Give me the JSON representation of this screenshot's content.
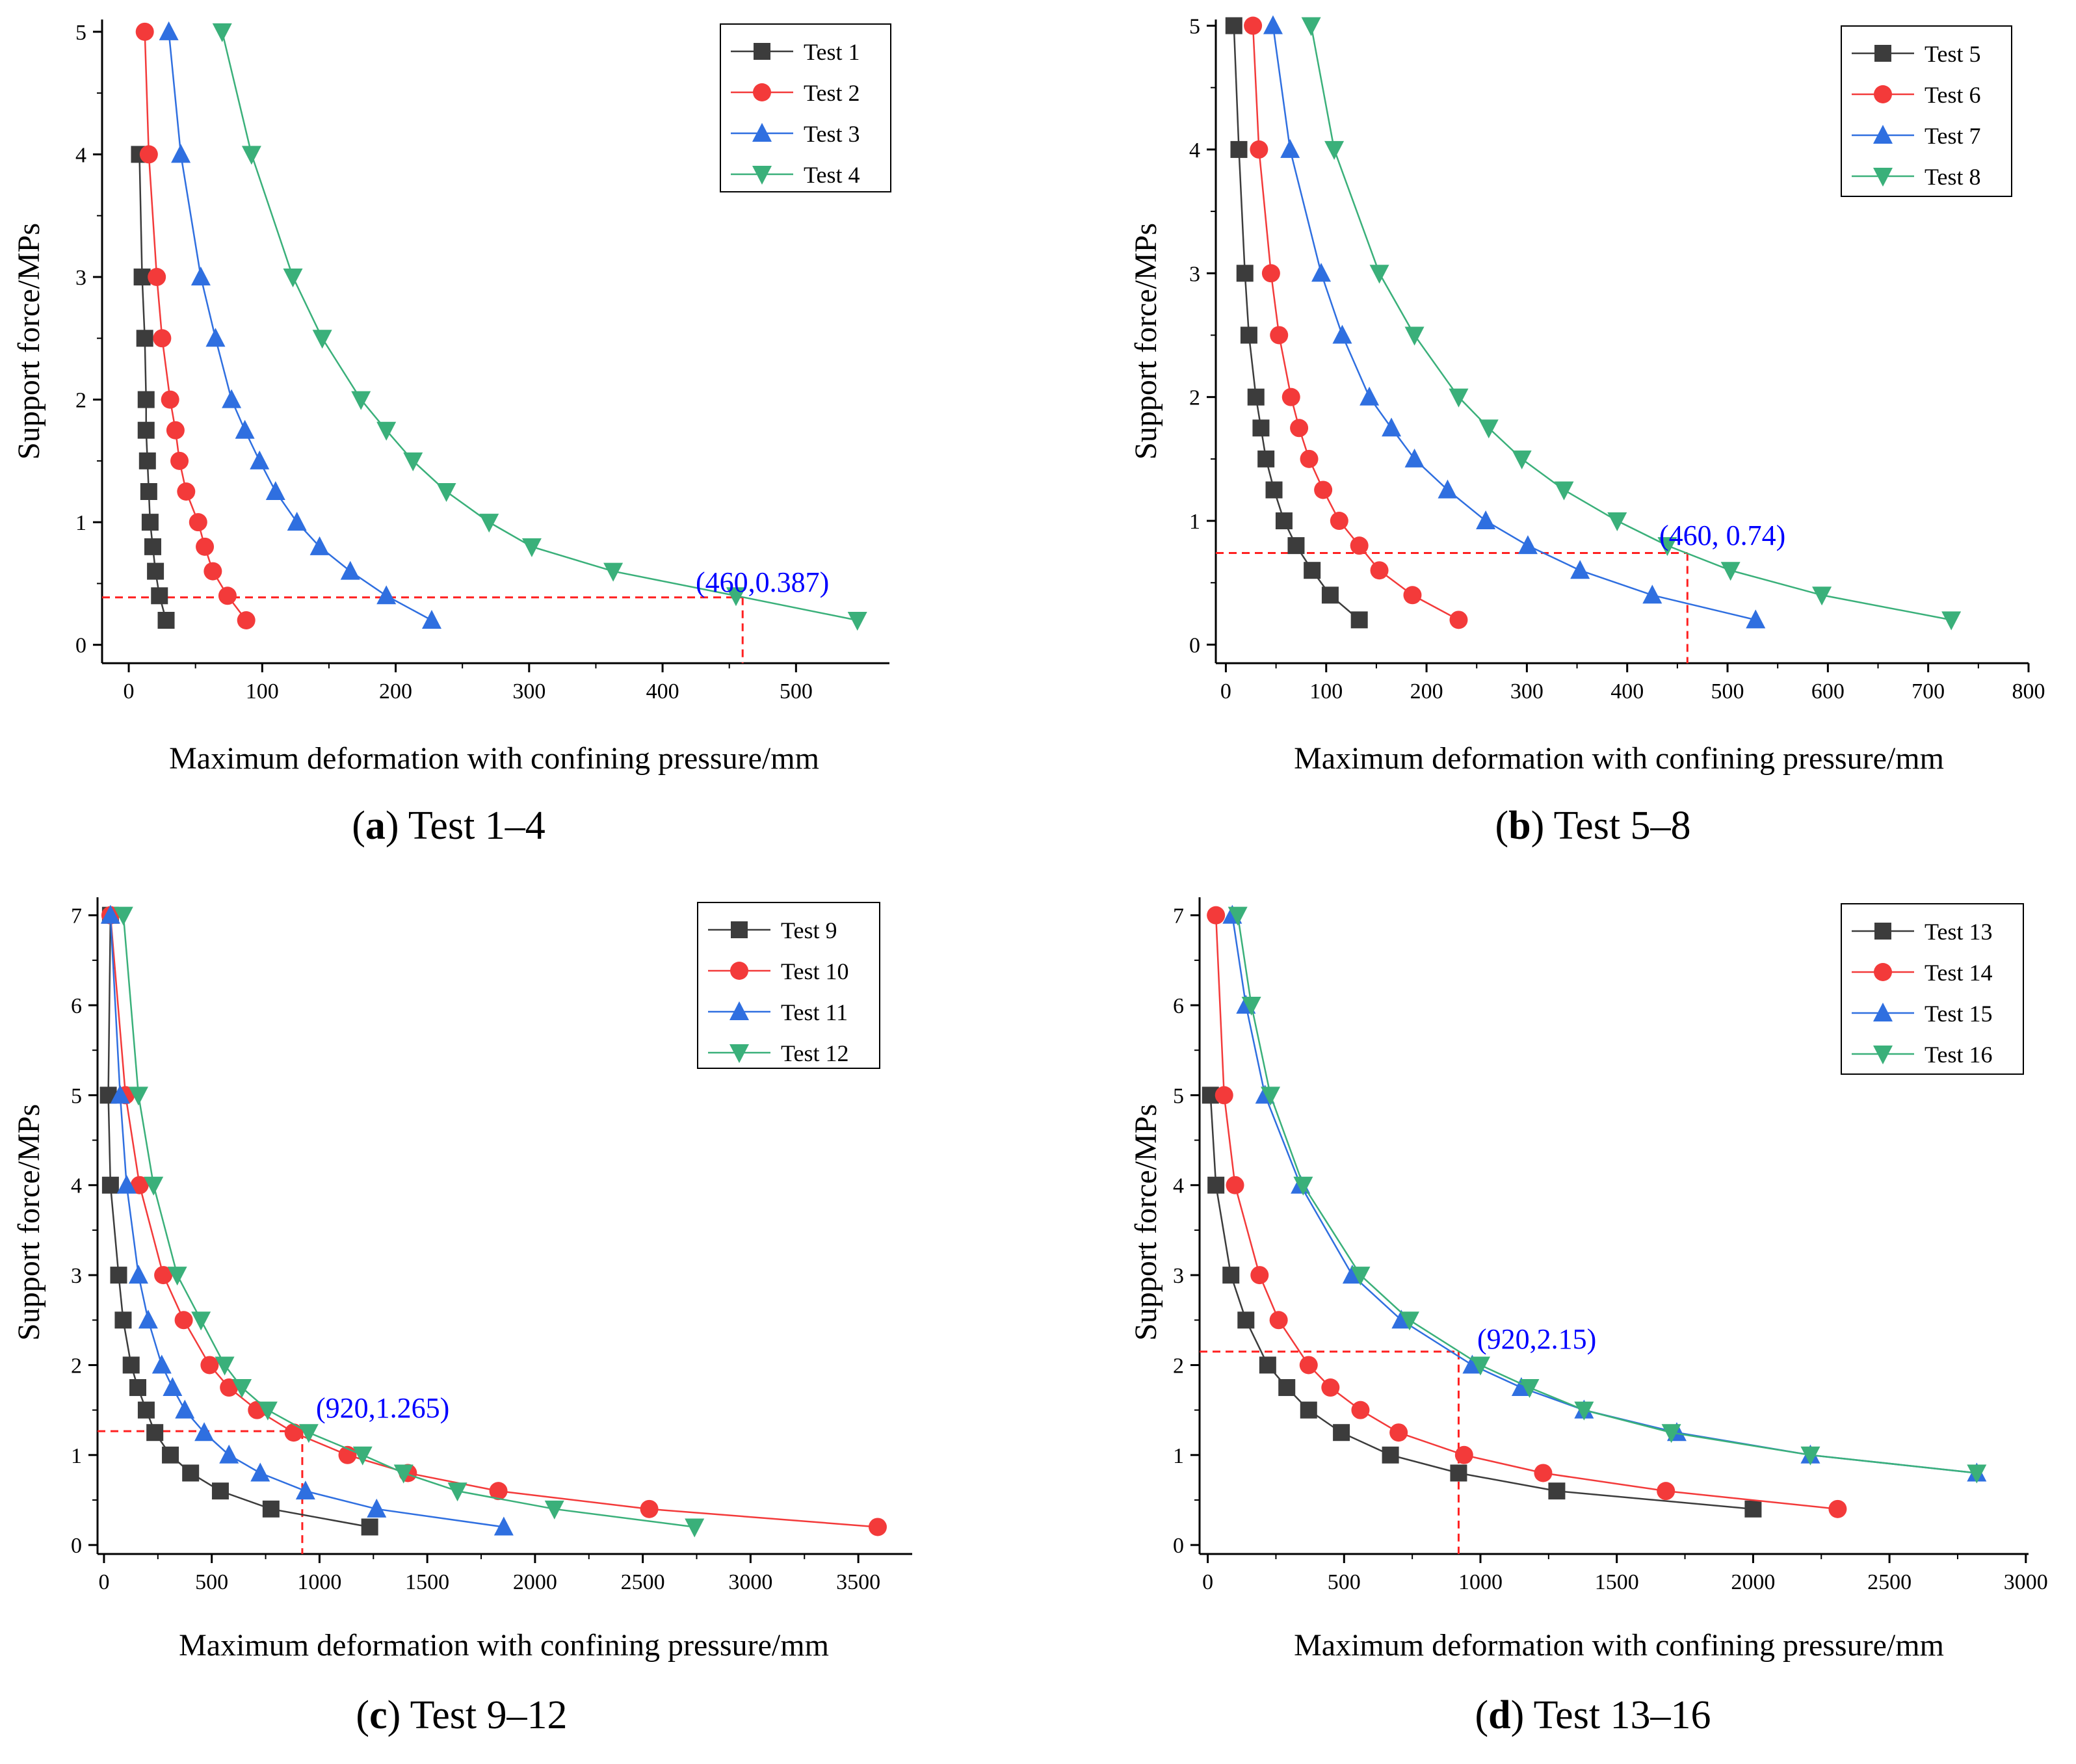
{
  "colors": {
    "black": "#3c3c3c",
    "red": "#f33a3a",
    "blue": "#2f6fe0",
    "green": "#3ab07a",
    "guide": "#ff2020",
    "annot": "#0000ff"
  },
  "chart_data": [
    {
      "type": "line",
      "title": "",
      "caption": {
        "open": "(",
        "letter": "a",
        "close": ")",
        "text": " Test 1–4"
      },
      "xlabel": "Maximum deformation with confining pressure/mm",
      "ylabel": "Support force/MPs",
      "xlim": [
        -20,
        570
      ],
      "ylim": [
        -0.15,
        5.1
      ],
      "xticks": [
        0,
        100,
        200,
        300,
        400,
        500
      ],
      "yticks": [
        0,
        1,
        2,
        3,
        4,
        5
      ],
      "xtick_labels": [
        "0",
        "100",
        "200",
        "300",
        "400",
        "500"
      ],
      "ytick_labels": [
        "0",
        "1",
        "2",
        "3",
        "4",
        "5"
      ],
      "legend": "top-right",
      "annotation": {
        "text": "(460,0.387)",
        "x": 460,
        "y": 0.387
      },
      "series": [
        {
          "name": "Test 1",
          "marker": "square",
          "color": "#3c3c3c",
          "x": [
            28,
            23,
            20,
            18,
            16,
            15,
            14,
            13,
            13,
            12,
            10,
            8
          ],
          "y": [
            0.2,
            0.4,
            0.6,
            0.8,
            1.0,
            1.25,
            1.5,
            1.75,
            2.0,
            2.5,
            3.0,
            4.0
          ]
        },
        {
          "name": "Test 2",
          "marker": "circle",
          "color": "#f33a3a",
          "x": [
            88,
            74,
            63,
            57,
            52,
            43,
            38,
            35,
            31,
            25,
            21,
            15,
            12
          ],
          "y": [
            0.2,
            0.4,
            0.6,
            0.8,
            1.0,
            1.25,
            1.5,
            1.75,
            2.0,
            2.5,
            3.0,
            4.0,
            5.0
          ]
        },
        {
          "name": "Test 3",
          "marker": "triangle-up",
          "color": "#2f6fe0",
          "x": [
            227,
            193,
            166,
            143,
            126,
            110,
            98,
            87,
            77,
            65,
            54,
            39,
            30
          ],
          "y": [
            0.2,
            0.4,
            0.6,
            0.8,
            1.0,
            1.25,
            1.5,
            1.75,
            2.0,
            2.5,
            3.0,
            4.0,
            5.0
          ]
        },
        {
          "name": "Test 4",
          "marker": "triangle-down",
          "color": "#3ab07a",
          "x": [
            546,
            455,
            363,
            302,
            270,
            238,
            213,
            193,
            174,
            145,
            123,
            92,
            70
          ],
          "y": [
            0.2,
            0.4,
            0.6,
            0.8,
            1.0,
            1.25,
            1.5,
            1.75,
            2.0,
            2.5,
            3.0,
            4.0,
            5.0
          ]
        }
      ]
    },
    {
      "type": "line",
      "title": "",
      "caption": {
        "open": "(",
        "letter": "b",
        "close": ")",
        "text": " Test 5–8"
      },
      "xlabel": "Maximum deformation with confining pressure/mm",
      "ylabel": "Support force/MPs",
      "xlim": [
        -10,
        800
      ],
      "ylim": [
        -0.15,
        5.05
      ],
      "xticks": [
        0,
        100,
        200,
        300,
        400,
        500,
        600,
        700,
        800
      ],
      "yticks": [
        0,
        1,
        2,
        3,
        4,
        5
      ],
      "xtick_labels": [
        "0",
        "100",
        "200",
        "300",
        "400",
        "500",
        "600",
        "700",
        "800"
      ],
      "ytick_labels": [
        "0",
        "1",
        "2",
        "3",
        "4",
        "5"
      ],
      "legend": "top-right",
      "annotation": {
        "text": "(460, 0.74)",
        "x": 460,
        "y": 0.74
      },
      "series": [
        {
          "name": "Test 5",
          "marker": "square",
          "color": "#3c3c3c",
          "x": [
            133,
            104,
            86,
            70,
            58,
            48,
            40,
            35,
            30,
            23,
            19,
            13,
            8
          ],
          "y": [
            0.2,
            0.4,
            0.6,
            0.8,
            1.0,
            1.25,
            1.5,
            1.75,
            2.0,
            2.5,
            3.0,
            4.0,
            5.0
          ]
        },
        {
          "name": "Test 6",
          "marker": "circle",
          "color": "#f33a3a",
          "x": [
            232,
            186,
            153,
            133,
            113,
            97,
            83,
            73,
            65,
            53,
            45,
            33,
            27
          ],
          "y": [
            0.2,
            0.4,
            0.6,
            0.8,
            1.0,
            1.25,
            1.5,
            1.75,
            2.0,
            2.5,
            3.0,
            4.0,
            5.0
          ]
        },
        {
          "name": "Test 7",
          "marker": "triangle-up",
          "color": "#2f6fe0",
          "x": [
            528,
            425,
            353,
            301,
            259,
            221,
            188,
            165,
            143,
            116,
            95,
            64,
            47
          ],
          "y": [
            0.2,
            0.4,
            0.6,
            0.8,
            1.0,
            1.25,
            1.5,
            1.75,
            2.0,
            2.5,
            3.0,
            4.0,
            5.0
          ]
        },
        {
          "name": "Test 8",
          "marker": "triangle-down",
          "color": "#3ab07a",
          "x": [
            723,
            594,
            503,
            440,
            390,
            337,
            295,
            262,
            232,
            188,
            153,
            108,
            85
          ],
          "y": [
            0.2,
            0.4,
            0.6,
            0.8,
            1.0,
            1.25,
            1.5,
            1.75,
            2.0,
            2.5,
            3.0,
            4.0,
            5.0
          ]
        }
      ]
    },
    {
      "type": "line",
      "title": "",
      "caption": {
        "open": "(",
        "letter": "c",
        "close": ")",
        "text": " Test 9–12"
      },
      "xlabel": "Maximum deformation with confining pressure/mm",
      "ylabel": "Support force/MPs",
      "xlim": [
        -30,
        3750
      ],
      "ylim": [
        -0.1,
        7.2
      ],
      "xticks": [
        0,
        500,
        1000,
        1500,
        2000,
        2500,
        3000,
        3500
      ],
      "yticks": [
        0,
        1,
        2,
        3,
        4,
        5,
        6,
        7
      ],
      "xtick_labels": [
        "0",
        "500",
        "1000",
        "1500",
        "2000",
        "2500",
        "3000",
        "3500"
      ],
      "ytick_labels": [
        "0",
        "1",
        "2",
        "3",
        "4",
        "5",
        "6",
        "7"
      ],
      "legend": "top-right",
      "annotation": {
        "text": "(920,1.265)",
        "x": 920,
        "y": 1.265
      },
      "series": [
        {
          "name": "Test 9",
          "marker": "square",
          "color": "#3c3c3c",
          "x": [
            1233,
            775,
            540,
            402,
            308,
            236,
            196,
            157,
            126,
            89,
            68,
            30,
            20,
            30
          ],
          "y": [
            0.2,
            0.4,
            0.6,
            0.8,
            1.0,
            1.25,
            1.5,
            1.75,
            2.0,
            2.5,
            3.0,
            4.0,
            5.0,
            7.0
          ]
        },
        {
          "name": "Test 10",
          "marker": "circle",
          "color": "#f33a3a",
          "x": [
            3590,
            2530,
            1830,
            1410,
            1130,
            880,
            710,
            580,
            490,
            370,
            275,
            165,
            100,
            30
          ],
          "y": [
            0.2,
            0.4,
            0.6,
            0.8,
            1.0,
            1.25,
            1.5,
            1.75,
            2.0,
            2.5,
            3.0,
            4.0,
            5.0,
            7.0
          ]
        },
        {
          "name": "Test 11",
          "marker": "triangle-up",
          "color": "#2f6fe0",
          "x": [
            1855,
            1265,
            935,
            725,
            580,
            465,
            375,
            318,
            268,
            205,
            160,
            105,
            75,
            30
          ],
          "y": [
            0.2,
            0.4,
            0.6,
            0.8,
            1.0,
            1.25,
            1.5,
            1.75,
            2.0,
            2.5,
            3.0,
            4.0,
            5.0,
            7.0
          ]
        },
        {
          "name": "Test 12",
          "marker": "triangle-down",
          "color": "#3ab07a",
          "x": [
            2740,
            2090,
            1640,
            1390,
            1200,
            950,
            760,
            640,
            560,
            450,
            340,
            230,
            160,
            90
          ],
          "y": [
            0.2,
            0.4,
            0.6,
            0.8,
            1.0,
            1.25,
            1.5,
            1.75,
            2.0,
            2.5,
            3.0,
            4.0,
            5.0,
            7.0
          ]
        }
      ]
    },
    {
      "type": "line",
      "title": "",
      "caption": {
        "open": "(",
        "letter": "d",
        "close": ")",
        "text": " Test 13–16"
      },
      "xlabel": "Maximum deformation with confining pressure/mm",
      "ylabel": "Support force/MPs",
      "xlim": [
        -30,
        3010
      ],
      "ylim": [
        -0.1,
        7.2
      ],
      "xticks": [
        0,
        500,
        1000,
        1500,
        2000,
        2500,
        3000
      ],
      "yticks": [
        0,
        1,
        2,
        3,
        4,
        5,
        6,
        7
      ],
      "xtick_labels": [
        "0",
        "500",
        "1000",
        "1500",
        "2000",
        "2500",
        "3000"
      ],
      "ytick_labels": [
        "0",
        "1",
        "2",
        "3",
        "4",
        "5",
        "6",
        "7"
      ],
      "legend": "top-right",
      "annotation": {
        "text": "(920,2.15)",
        "x": 920,
        "y": 2.15
      },
      "series": [
        {
          "name": "Test 13",
          "marker": "square",
          "color": "#3c3c3c",
          "x": [
            2000,
            1280,
            920,
            670,
            490,
            370,
            290,
            220,
            140,
            85,
            30,
            10
          ],
          "y": [
            0.4,
            0.6,
            0.8,
            1.0,
            1.25,
            1.5,
            1.75,
            2.0,
            2.5,
            3.0,
            4.0,
            5.0
          ]
        },
        {
          "name": "Test 14",
          "marker": "circle",
          "color": "#f33a3a",
          "x": [
            2310,
            1680,
            1230,
            940,
            700,
            560,
            450,
            370,
            260,
            190,
            100,
            60,
            30
          ],
          "y": [
            0.4,
            0.6,
            0.8,
            1.0,
            1.25,
            1.5,
            1.75,
            2.0,
            2.5,
            3.0,
            4.0,
            5.0,
            7.0
          ]
        },
        {
          "name": "Test 15",
          "marker": "triangle-up",
          "color": "#2f6fe0",
          "x": [
            2820,
            2210,
            1720,
            1380,
            1150,
            970,
            710,
            530,
            340,
            210,
            140,
            90
          ],
          "y": [
            0.8,
            1.0,
            1.25,
            1.5,
            1.75,
            2.0,
            2.5,
            3.0,
            4.0,
            5.0,
            6.0,
            7.0
          ]
        },
        {
          "name": "Test 16",
          "marker": "triangle-down",
          "color": "#3ab07a",
          "x": [
            2820,
            2210,
            1700,
            1380,
            1180,
            1000,
            740,
            560,
            350,
            230,
            160,
            110
          ],
          "y": [
            0.8,
            1.0,
            1.25,
            1.5,
            1.75,
            2.0,
            2.5,
            3.0,
            4.0,
            5.0,
            6.0,
            7.0
          ]
        }
      ]
    }
  ]
}
